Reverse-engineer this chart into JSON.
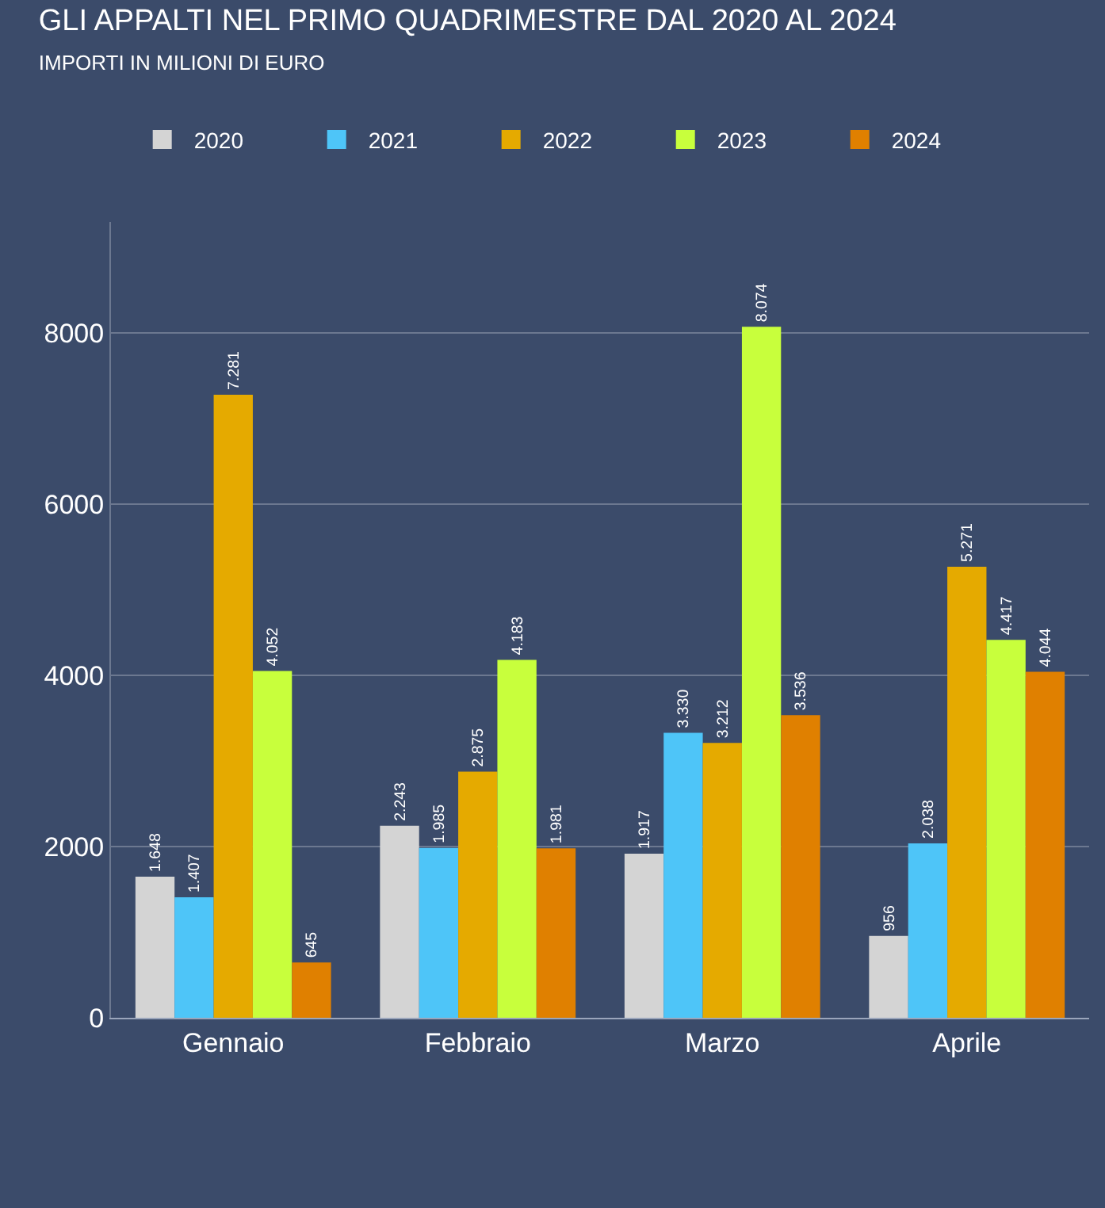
{
  "chart_data": {
    "type": "bar",
    "title": "GLI APPALTI NEL PRIMO QUADRIMESTRE DAL 2020 AL 2024",
    "subtitle": "IMPORTI IN MILIONI DI EURO",
    "categories": [
      "Gennaio",
      "Febbraio",
      "Marzo",
      "Aprile"
    ],
    "series": [
      {
        "name": "2020",
        "color": "#d4d4d4",
        "values": [
          1648,
          2243,
          1917,
          956
        ],
        "value_labels": [
          "1.648",
          "2.243",
          "1.917",
          "956"
        ]
      },
      {
        "name": "2021",
        "color": "#4ec5f8",
        "values": [
          1407,
          1985,
          3330,
          2038
        ],
        "value_labels": [
          "1.407",
          "1.985",
          "3.330",
          "2.038"
        ]
      },
      {
        "name": "2022",
        "color": "#e5aa00",
        "values": [
          7281,
          2875,
          3212,
          5271
        ],
        "value_labels": [
          "7.281",
          "2.875",
          "3.212",
          "5.271"
        ]
      },
      {
        "name": "2023",
        "color": "#c8ff3c",
        "values": [
          4052,
          4183,
          8074,
          4417
        ],
        "value_labels": [
          "4.052",
          "4.183",
          "8.074",
          "4.417"
        ]
      },
      {
        "name": "2024",
        "color": "#e08000",
        "values": [
          645,
          1981,
          3536,
          4044
        ],
        "value_labels": [
          "645",
          "1.981",
          "3.536",
          "4.044"
        ]
      }
    ],
    "ylim": [
      0,
      9300
    ],
    "yticks": [
      0,
      2000,
      4000,
      6000,
      8000
    ],
    "grid": "y",
    "legend": "top left"
  }
}
